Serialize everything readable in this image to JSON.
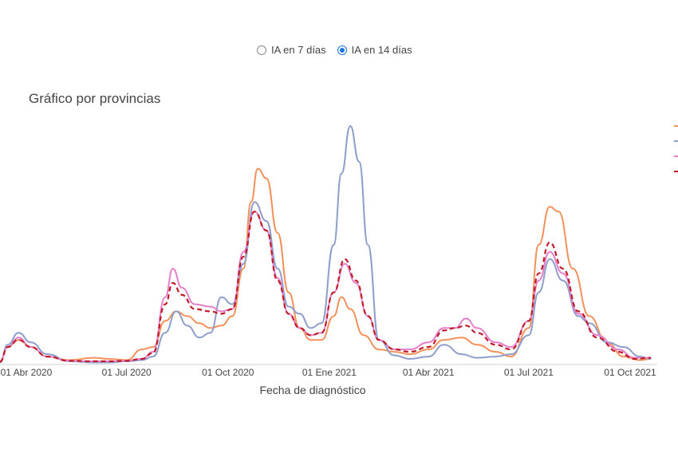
{
  "controls": {
    "options": [
      {
        "label": "IA en 7 días",
        "checked": false
      },
      {
        "label": "IA en 14 días",
        "checked": true
      }
    ]
  },
  "chart_data": {
    "type": "line",
    "title": "Gráfico por provincias",
    "xlabel": "Fecha de diagnóstico",
    "ylabel": "",
    "xlim": [
      "2020-03-01",
      "2021-10-20"
    ],
    "ylim": [
      0,
      1000
    ],
    "x_ticks": [
      "01 Abr 2020",
      "01 Jul 2020",
      "01 Oct 2020",
      "01 Ene 2021",
      "01 Abr 2021",
      "01 Jul 2021",
      "01 Oct 2021"
    ],
    "x_tick_dates": [
      "2020-04-01",
      "2020-07-01",
      "2020-10-01",
      "2021-01-01",
      "2021-04-01",
      "2021-07-01",
      "2021-10-01"
    ],
    "y_axis_labels_visible": false,
    "grid": false,
    "legend": {
      "position": "right",
      "labels_visible": false
    },
    "series": [
      {
        "color": "#f4915b",
        "dash": "solid",
        "points": [
          [
            "2020-03-01",
            10
          ],
          [
            "2020-03-15",
            70
          ],
          [
            "2020-03-25",
            100
          ],
          [
            "2020-04-05",
            70
          ],
          [
            "2020-04-20",
            30
          ],
          [
            "2020-05-10",
            15
          ],
          [
            "2020-06-01",
            25
          ],
          [
            "2020-06-15",
            20
          ],
          [
            "2020-07-01",
            15
          ],
          [
            "2020-07-15",
            60
          ],
          [
            "2020-07-25",
            70
          ],
          [
            "2020-08-05",
            180
          ],
          [
            "2020-08-15",
            220
          ],
          [
            "2020-08-25",
            200
          ],
          [
            "2020-09-05",
            170
          ],
          [
            "2020-09-15",
            150
          ],
          [
            "2020-09-25",
            160
          ],
          [
            "2020-10-05",
            200
          ],
          [
            "2020-10-15",
            400
          ],
          [
            "2020-10-22",
            680
          ],
          [
            "2020-10-28",
            820
          ],
          [
            "2020-11-05",
            780
          ],
          [
            "2020-11-15",
            550
          ],
          [
            "2020-11-25",
            300
          ],
          [
            "2020-12-05",
            150
          ],
          [
            "2020-12-15",
            100
          ],
          [
            "2020-12-25",
            100
          ],
          [
            "2021-01-05",
            200
          ],
          [
            "2021-01-12",
            280
          ],
          [
            "2021-01-20",
            230
          ],
          [
            "2021-02-01",
            120
          ],
          [
            "2021-02-15",
            60
          ],
          [
            "2021-03-01",
            50
          ],
          [
            "2021-03-15",
            40
          ],
          [
            "2021-04-01",
            60
          ],
          [
            "2021-04-15",
            100
          ],
          [
            "2021-05-01",
            110
          ],
          [
            "2021-05-15",
            80
          ],
          [
            "2021-06-01",
            50
          ],
          [
            "2021-06-15",
            30
          ],
          [
            "2021-07-01",
            150
          ],
          [
            "2021-07-10",
            500
          ],
          [
            "2021-07-20",
            660
          ],
          [
            "2021-07-28",
            640
          ],
          [
            "2021-08-10",
            400
          ],
          [
            "2021-08-25",
            200
          ],
          [
            "2021-09-10",
            90
          ],
          [
            "2021-09-25",
            30
          ],
          [
            "2021-10-10",
            15
          ],
          [
            "2021-10-20",
            20
          ]
        ]
      },
      {
        "color": "#8d9ecb",
        "dash": "solid",
        "points": [
          [
            "2020-03-01",
            5
          ],
          [
            "2020-03-15",
            80
          ],
          [
            "2020-03-25",
            130
          ],
          [
            "2020-04-05",
            90
          ],
          [
            "2020-04-20",
            40
          ],
          [
            "2020-05-10",
            10
          ],
          [
            "2020-06-01",
            5
          ],
          [
            "2020-06-15",
            5
          ],
          [
            "2020-07-01",
            10
          ],
          [
            "2020-07-15",
            15
          ],
          [
            "2020-07-25",
            30
          ],
          [
            "2020-08-05",
            130
          ],
          [
            "2020-08-15",
            220
          ],
          [
            "2020-08-25",
            160
          ],
          [
            "2020-09-05",
            110
          ],
          [
            "2020-09-15",
            130
          ],
          [
            "2020-09-25",
            280
          ],
          [
            "2020-10-05",
            250
          ],
          [
            "2020-10-15",
            420
          ],
          [
            "2020-10-25",
            680
          ],
          [
            "2020-11-05",
            600
          ],
          [
            "2020-11-15",
            400
          ],
          [
            "2020-11-25",
            240
          ],
          [
            "2020-12-05",
            210
          ],
          [
            "2020-12-15",
            150
          ],
          [
            "2020-12-25",
            170
          ],
          [
            "2021-01-05",
            500
          ],
          [
            "2021-01-12",
            800
          ],
          [
            "2021-01-20",
            1000
          ],
          [
            "2021-01-28",
            850
          ],
          [
            "2021-02-05",
            500
          ],
          [
            "2021-02-15",
            100
          ],
          [
            "2021-03-01",
            35
          ],
          [
            "2021-03-15",
            20
          ],
          [
            "2021-04-01",
            30
          ],
          [
            "2021-04-15",
            80
          ],
          [
            "2021-05-01",
            40
          ],
          [
            "2021-05-15",
            25
          ],
          [
            "2021-06-01",
            30
          ],
          [
            "2021-06-15",
            40
          ],
          [
            "2021-07-01",
            120
          ],
          [
            "2021-07-10",
            300
          ],
          [
            "2021-07-20",
            440
          ],
          [
            "2021-08-01",
            350
          ],
          [
            "2021-08-15",
            200
          ],
          [
            "2021-08-25",
            170
          ],
          [
            "2021-09-10",
            90
          ],
          [
            "2021-09-25",
            70
          ],
          [
            "2021-10-10",
            30
          ],
          [
            "2021-10-20",
            20
          ]
        ]
      },
      {
        "color": "#e57fcc",
        "dash": "solid",
        "points": [
          [
            "2020-03-01",
            8
          ],
          [
            "2020-03-15",
            70
          ],
          [
            "2020-03-25",
            110
          ],
          [
            "2020-04-05",
            70
          ],
          [
            "2020-04-20",
            30
          ],
          [
            "2020-05-10",
            12
          ],
          [
            "2020-06-01",
            10
          ],
          [
            "2020-06-15",
            10
          ],
          [
            "2020-07-01",
            12
          ],
          [
            "2020-07-15",
            20
          ],
          [
            "2020-07-25",
            50
          ],
          [
            "2020-08-05",
            280
          ],
          [
            "2020-08-12",
            400
          ],
          [
            "2020-08-20",
            320
          ],
          [
            "2020-09-01",
            250
          ],
          [
            "2020-09-15",
            240
          ],
          [
            "2020-09-25",
            220
          ],
          [
            "2020-10-05",
            230
          ],
          [
            "2020-10-15",
            470
          ],
          [
            "2020-10-25",
            640
          ],
          [
            "2020-11-05",
            560
          ],
          [
            "2020-11-15",
            360
          ],
          [
            "2020-11-25",
            210
          ],
          [
            "2020-12-05",
            150
          ],
          [
            "2020-12-15",
            120
          ],
          [
            "2020-12-25",
            130
          ],
          [
            "2021-01-05",
            300
          ],
          [
            "2021-01-15",
            420
          ],
          [
            "2021-01-25",
            340
          ],
          [
            "2021-02-05",
            200
          ],
          [
            "2021-02-15",
            100
          ],
          [
            "2021-03-01",
            60
          ],
          [
            "2021-03-15",
            60
          ],
          [
            "2021-04-01",
            90
          ],
          [
            "2021-04-15",
            150
          ],
          [
            "2021-04-25",
            150
          ],
          [
            "2021-05-05",
            190
          ],
          [
            "2021-05-15",
            150
          ],
          [
            "2021-06-01",
            90
          ],
          [
            "2021-06-15",
            70
          ],
          [
            "2021-07-01",
            180
          ],
          [
            "2021-07-10",
            350
          ],
          [
            "2021-07-20",
            470
          ],
          [
            "2021-08-01",
            380
          ],
          [
            "2021-08-15",
            210
          ],
          [
            "2021-09-01",
            120
          ],
          [
            "2021-09-20",
            60
          ],
          [
            "2021-10-05",
            25
          ],
          [
            "2021-10-20",
            25
          ]
        ]
      },
      {
        "color": "#c01c28",
        "dash": "dashed",
        "points": [
          [
            "2020-03-01",
            8
          ],
          [
            "2020-03-15",
            70
          ],
          [
            "2020-03-25",
            100
          ],
          [
            "2020-04-05",
            70
          ],
          [
            "2020-04-20",
            30
          ],
          [
            "2020-05-10",
            12
          ],
          [
            "2020-06-01",
            10
          ],
          [
            "2020-06-15",
            10
          ],
          [
            "2020-07-01",
            12
          ],
          [
            "2020-07-15",
            20
          ],
          [
            "2020-07-25",
            45
          ],
          [
            "2020-08-05",
            250
          ],
          [
            "2020-08-12",
            340
          ],
          [
            "2020-08-20",
            290
          ],
          [
            "2020-09-01",
            230
          ],
          [
            "2020-09-15",
            220
          ],
          [
            "2020-09-25",
            210
          ],
          [
            "2020-10-05",
            230
          ],
          [
            "2020-10-15",
            450
          ],
          [
            "2020-10-25",
            640
          ],
          [
            "2020-11-05",
            560
          ],
          [
            "2020-11-15",
            350
          ],
          [
            "2020-11-25",
            210
          ],
          [
            "2020-12-05",
            150
          ],
          [
            "2020-12-15",
            120
          ],
          [
            "2020-12-25",
            130
          ],
          [
            "2021-01-05",
            300
          ],
          [
            "2021-01-15",
            440
          ],
          [
            "2021-01-25",
            350
          ],
          [
            "2021-02-05",
            200
          ],
          [
            "2021-02-15",
            100
          ],
          [
            "2021-03-01",
            60
          ],
          [
            "2021-03-15",
            50
          ],
          [
            "2021-04-01",
            70
          ],
          [
            "2021-04-15",
            140
          ],
          [
            "2021-04-25",
            150
          ],
          [
            "2021-05-05",
            160
          ],
          [
            "2021-05-15",
            130
          ],
          [
            "2021-06-01",
            80
          ],
          [
            "2021-06-15",
            60
          ],
          [
            "2021-07-01",
            180
          ],
          [
            "2021-07-10",
            380
          ],
          [
            "2021-07-20",
            510
          ],
          [
            "2021-08-01",
            400
          ],
          [
            "2021-08-15",
            220
          ],
          [
            "2021-09-01",
            110
          ],
          [
            "2021-09-20",
            50
          ],
          [
            "2021-10-05",
            20
          ],
          [
            "2021-10-20",
            25
          ]
        ]
      }
    ]
  }
}
